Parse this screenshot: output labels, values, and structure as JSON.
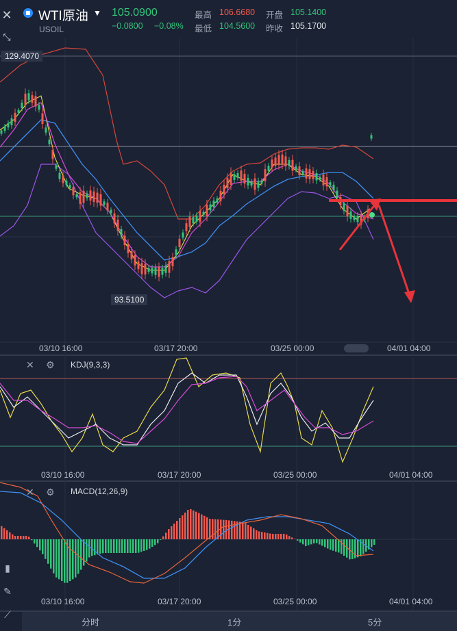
{
  "header": {
    "close_icon": "close-icon",
    "symbol_name": "WTI原油",
    "symbol_code": "USOIL",
    "last_price": "105.0900",
    "change": "−0.0800",
    "change_pct": "−0.08%",
    "high_label": "最高",
    "high_value": "106.6680",
    "low_label": "最低",
    "low_value": "104.5600",
    "open_label": "开盘",
    "open_value": "105.1400",
    "prev_close_label": "昨收",
    "prev_close_value": "105.1700"
  },
  "main_chart": {
    "high_marker": "129.4070",
    "low_marker": "93.5100",
    "x_ticks": [
      "03/10 16:00",
      "03/17 20:00",
      "03/25 00:00",
      "04/01 04:00"
    ]
  },
  "kdj": {
    "title": "KDJ(9,3,3)",
    "x_ticks": [
      "03/10 16:00",
      "03/17 20:00",
      "03/25 00:00",
      "04/01 04:00"
    ]
  },
  "macd": {
    "title": "MACD(12,26,9)",
    "x_ticks": [
      "03/10 16:00",
      "03/17 20:00",
      "03/25 00:00",
      "04/01 04:00"
    ]
  },
  "tabs": [
    "分时",
    "1分",
    "5分"
  ],
  "colors": {
    "up": "#f25a4e",
    "down": "#33c37a",
    "bg": "#1b2233",
    "arrow": "#e8343a"
  }
}
